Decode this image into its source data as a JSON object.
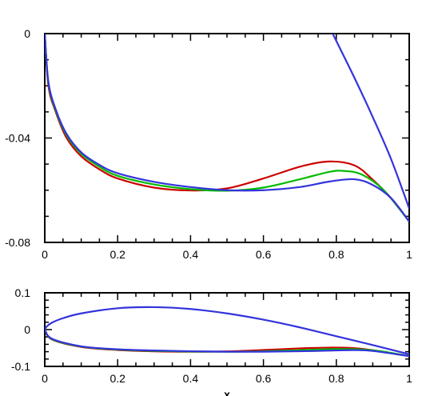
{
  "chart_data": [
    {
      "type": "line",
      "title": "",
      "xlabel": "",
      "ylabel": "",
      "xlim": [
        0,
        1
      ],
      "ylim": [
        -0.08,
        0
      ],
      "xticks": [
        "0",
        "0.2",
        "0.4",
        "0.6",
        "0.8",
        "1"
      ],
      "yticks": [
        "0",
        "-0.04",
        "-0.08"
      ],
      "grid": false,
      "series": [
        {
          "color": "#cc0000",
          "points": [
            [
              0,
              0
            ],
            [
              0.01,
              -0.02
            ],
            [
              0.03,
              -0.03
            ],
            [
              0.06,
              -0.04
            ],
            [
              0.1,
              -0.047
            ],
            [
              0.15,
              -0.052
            ],
            [
              0.2,
              -0.0555
            ],
            [
              0.3,
              -0.059
            ],
            [
              0.4,
              -0.0601
            ],
            [
              0.5,
              -0.0593
            ],
            [
              0.6,
              -0.0555
            ],
            [
              0.7,
              -0.051
            ],
            [
              0.78,
              -0.049
            ],
            [
              0.85,
              -0.0505
            ],
            [
              0.9,
              -0.056
            ],
            [
              0.95,
              -0.063
            ],
            [
              1,
              -0.072
            ]
          ]
        },
        {
          "color": "#00bb00",
          "points": [
            [
              0,
              0
            ],
            [
              0.01,
              -0.019
            ],
            [
              0.03,
              -0.0295
            ],
            [
              0.06,
              -0.039
            ],
            [
              0.1,
              -0.046
            ],
            [
              0.15,
              -0.051
            ],
            [
              0.2,
              -0.0545
            ],
            [
              0.3,
              -0.0578
            ],
            [
              0.4,
              -0.0596
            ],
            [
              0.5,
              -0.0602
            ],
            [
              0.6,
              -0.059
            ],
            [
              0.7,
              -0.0558
            ],
            [
              0.78,
              -0.053
            ],
            [
              0.82,
              -0.0526
            ],
            [
              0.87,
              -0.054
            ],
            [
              0.93,
              -0.06
            ],
            [
              1,
              -0.072
            ]
          ]
        },
        {
          "color": "#3333dd",
          "points": [
            [
              0,
              0
            ],
            [
              0.01,
              -0.0185
            ],
            [
              0.03,
              -0.029
            ],
            [
              0.06,
              -0.0385
            ],
            [
              0.1,
              -0.0455
            ],
            [
              0.15,
              -0.0503
            ],
            [
              0.2,
              -0.0535
            ],
            [
              0.3,
              -0.0568
            ],
            [
              0.4,
              -0.0588
            ],
            [
              0.5,
              -0.06
            ],
            [
              0.6,
              -0.06
            ],
            [
              0.7,
              -0.0588
            ],
            [
              0.78,
              -0.0567
            ],
            [
              0.85,
              -0.0558
            ],
            [
              0.9,
              -0.058
            ],
            [
              0.95,
              -0.063
            ],
            [
              1,
              -0.072
            ]
          ]
        },
        {
          "color": "#3333dd",
          "points": [
            [
              0.79,
              0
            ],
            [
              0.85,
              -0.017
            ],
            [
              0.9,
              -0.032
            ],
            [
              0.95,
              -0.048
            ],
            [
              1,
              -0.067
            ]
          ]
        }
      ]
    },
    {
      "type": "line",
      "title": "",
      "xlabel": "x",
      "ylabel": "",
      "xlim": [
        0,
        1
      ],
      "ylim": [
        -0.1,
        0.1
      ],
      "xticks": [
        "0",
        "0.2",
        "0.4",
        "0.6",
        "0.8",
        "1"
      ],
      "yticks": [
        "0.1",
        "0",
        "-0.1"
      ],
      "grid": false,
      "series": [
        {
          "color": "#cc0000",
          "points": [
            [
              0,
              0
            ],
            [
              0.02,
              -0.027
            ],
            [
              0.1,
              -0.047
            ],
            [
              0.2,
              -0.0555
            ],
            [
              0.3,
              -0.059
            ],
            [
              0.4,
              -0.0601
            ],
            [
              0.5,
              -0.0593
            ],
            [
              0.6,
              -0.0555
            ],
            [
              0.7,
              -0.051
            ],
            [
              0.78,
              -0.049
            ],
            [
              0.85,
              -0.0505
            ],
            [
              0.9,
              -0.056
            ],
            [
              1,
              -0.072
            ]
          ]
        },
        {
          "color": "#00bb00",
          "points": [
            [
              0,
              0
            ],
            [
              0.02,
              -0.026
            ],
            [
              0.1,
              -0.046
            ],
            [
              0.2,
              -0.0545
            ],
            [
              0.3,
              -0.0578
            ],
            [
              0.4,
              -0.0596
            ],
            [
              0.5,
              -0.0602
            ],
            [
              0.6,
              -0.059
            ],
            [
              0.7,
              -0.0558
            ],
            [
              0.8,
              -0.053
            ],
            [
              0.87,
              -0.054
            ],
            [
              0.93,
              -0.06
            ],
            [
              1,
              -0.072
            ]
          ]
        },
        {
          "color": "#3333dd",
          "points": [
            [
              0,
              0
            ],
            [
              0.02,
              -0.025
            ],
            [
              0.1,
              -0.0455
            ],
            [
              0.2,
              -0.0535
            ],
            [
              0.3,
              -0.0568
            ],
            [
              0.4,
              -0.0588
            ],
            [
              0.5,
              -0.06
            ],
            [
              0.6,
              -0.06
            ],
            [
              0.7,
              -0.0588
            ],
            [
              0.8,
              -0.0567
            ],
            [
              0.85,
              -0.0558
            ],
            [
              0.9,
              -0.058
            ],
            [
              1,
              -0.072
            ]
          ]
        },
        {
          "color": "#3333dd",
          "points": [
            [
              1,
              -0.067
            ],
            [
              0.9,
              -0.042
            ],
            [
              0.8,
              -0.018
            ],
            [
              0.7,
              0.006
            ],
            [
              0.6,
              0.027
            ],
            [
              0.5,
              0.044
            ],
            [
              0.4,
              0.056
            ],
            [
              0.3,
              0.061
            ],
            [
              0.2,
              0.058
            ],
            [
              0.1,
              0.044
            ],
            [
              0.05,
              0.031
            ],
            [
              0.02,
              0.019
            ],
            [
              0.005,
              0.008
            ],
            [
              0,
              0
            ]
          ]
        }
      ]
    }
  ]
}
